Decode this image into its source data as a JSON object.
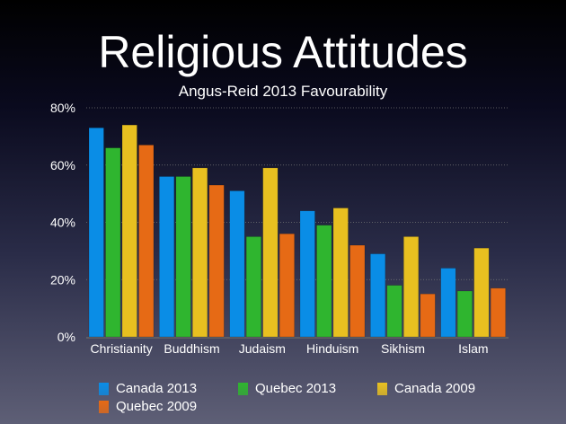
{
  "chart_data": {
    "type": "bar",
    "title": "Religious Attitudes",
    "subtitle": "Angus-Reid 2013 Favourability",
    "categories": [
      "Christianity",
      "Buddhism",
      "Judaism",
      "Hinduism",
      "Sikhism",
      "Islam"
    ],
    "ylim": [
      0,
      80
    ],
    "yticks": [
      "0%",
      "20%",
      "40%",
      "60%",
      "80%"
    ],
    "grid": true,
    "legend_placement": "bottom",
    "series": [
      {
        "name": "Canada 2013",
        "color": "#0a8de6",
        "values": [
          73,
          56,
          51,
          44,
          29,
          24
        ]
      },
      {
        "name": "Quebec 2013",
        "color": "#2fb52f",
        "values": [
          66,
          56,
          35,
          39,
          18,
          16
        ]
      },
      {
        "name": "Canada 2009",
        "color": "#e8c020",
        "values": [
          74,
          59,
          59,
          45,
          35,
          31
        ]
      },
      {
        "name": "Quebec 2009",
        "color": "#e66a15",
        "values": [
          67,
          53,
          36,
          32,
          15,
          17
        ]
      }
    ]
  }
}
